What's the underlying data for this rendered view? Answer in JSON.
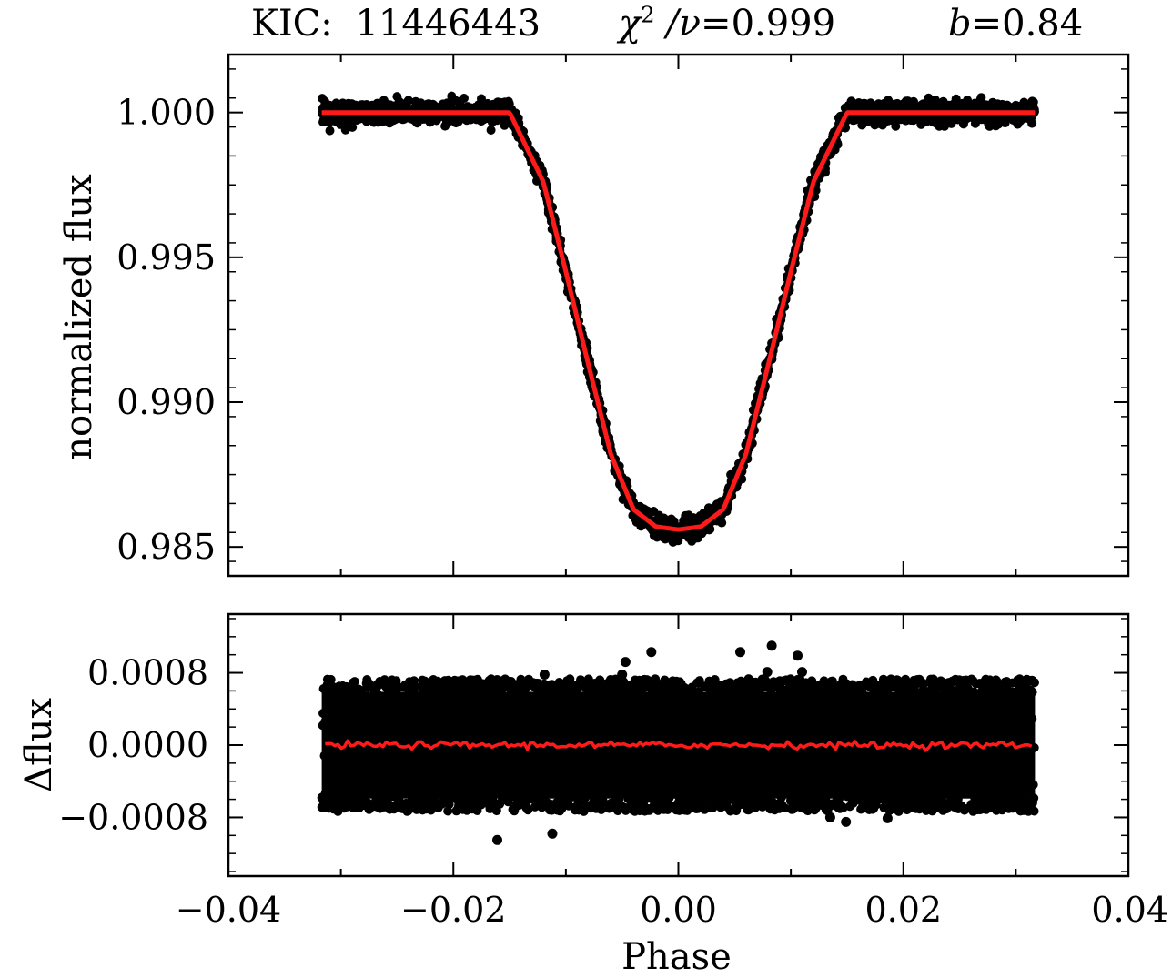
{
  "title": {
    "target_label": "KIC:",
    "target_id": "11446443",
    "chi2_symbol": "χ",
    "chi2_exponent": "2",
    "chi2_divider": " /ν",
    "chi2_value": "=0.999",
    "b_symbol": "b",
    "b_value": "=0.84"
  },
  "chart_data": [
    {
      "type": "scatter",
      "panel": "top",
      "title": "",
      "xlabel": "",
      "ylabel": "normalized  flux",
      "xlim": [
        -0.04,
        0.04
      ],
      "ylim": [
        0.984,
        1.002
      ],
      "yticks": [
        1.0,
        0.995,
        0.99,
        0.985
      ],
      "ytick_labels": [
        "1.000",
        "0.995",
        "0.990",
        "0.985"
      ],
      "grid": false,
      "series": [
        {
          "kind": "observed",
          "color": "#000000",
          "x_range": [
            -0.0317,
            0.0317
          ],
          "ingress_start": -0.015,
          "flat_bottom_start": -0.0052,
          "out_of_transit_flux": 1.0,
          "minimum_flux": 0.9856,
          "scatter": 0.0004
        },
        {
          "kind": "model",
          "color": "#ff1a1a",
          "x": [
            -0.0317,
            -0.015,
            -0.012,
            -0.01,
            -0.008,
            -0.006,
            -0.004,
            -0.002,
            0.0,
            0.002,
            0.004,
            0.006,
            0.008,
            0.01,
            0.012,
            0.015,
            0.0317
          ],
          "y": [
            1.0,
            1.0,
            0.9976,
            0.9945,
            0.9913,
            0.9882,
            0.9863,
            0.9857,
            0.9856,
            0.9857,
            0.9863,
            0.9882,
            0.9913,
            0.9945,
            0.9976,
            1.0,
            1.0
          ]
        }
      ]
    },
    {
      "type": "scatter",
      "panel": "bottom",
      "title": "",
      "xlabel": "Phase",
      "ylabel": "Δflux",
      "xlim": [
        -0.04,
        0.04
      ],
      "ylim": [
        -0.00145,
        0.00145
      ],
      "xticks": [
        -0.04,
        -0.02,
        0.0,
        0.02,
        0.04
      ],
      "xtick_labels": [
        "−0.04",
        "−0.02",
        "0.00",
        "0.02",
        "0.04"
      ],
      "yticks": [
        0.0008,
        0.0,
        -0.0008
      ],
      "ytick_labels": [
        "0.0008",
        "0.0000",
        "−0.0008"
      ],
      "grid": false,
      "series": [
        {
          "kind": "residuals",
          "color": "#000000",
          "x_range": [
            -0.0317,
            0.0317
          ],
          "band": [
            -0.00072,
            0.00072
          ],
          "outliers": [
            {
              "x": -0.0161,
              "y": -0.00105
            },
            {
              "x": -0.0112,
              "y": -0.00098
            },
            {
              "x": -0.0119,
              "y": 0.00078
            },
            {
              "x": -0.005,
              "y": 0.00078
            },
            {
              "x": -0.0047,
              "y": 0.00092
            },
            {
              "x": -0.0024,
              "y": 0.00103
            },
            {
              "x": 0.0055,
              "y": 0.00103
            },
            {
              "x": 0.0079,
              "y": 0.00081
            },
            {
              "x": 0.0083,
              "y": 0.0011
            },
            {
              "x": 0.0106,
              "y": 0.00099
            },
            {
              "x": 0.011,
              "y": 0.00081
            },
            {
              "x": 0.0135,
              "y": -0.0008
            },
            {
              "x": 0.0149,
              "y": -0.00085
            },
            {
              "x": 0.0186,
              "y": -0.00081
            }
          ]
        },
        {
          "kind": "mean",
          "color": "#ff1a1a",
          "level": 0.0
        }
      ]
    }
  ]
}
